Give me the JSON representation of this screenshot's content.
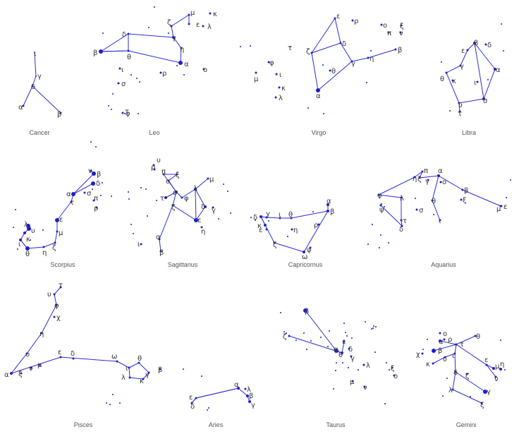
{
  "colors": {
    "line": "#2b2bd6",
    "star": "#1e1ecc",
    "label": "#333333",
    "name": "#555555",
    "background": "#ffffff"
  },
  "constellations": [
    {
      "id": "cancer",
      "name": "Cancer",
      "stars": {
        "iota": "ι",
        "gamma": "γ",
        "delta": "δ",
        "alpha": "α",
        "beta": "β"
      }
    },
    {
      "id": "leo",
      "name": "Leo",
      "stars": {
        "kappa": "κ",
        "mu": "μ",
        "zeta": "ζ",
        "epsilon": "ε",
        "lambda": "λ",
        "delta": "δ",
        "gamma": "γ",
        "beta": "β",
        "theta": "θ",
        "eta": "η",
        "alpha": "α",
        "omicron": "ο",
        "iota": "ι",
        "rho": "ρ",
        "sigma": "σ",
        "tau": "τ",
        "phi": "φ"
      }
    },
    {
      "id": "virgo",
      "name": "Virgo",
      "stars": {
        "epsilon": "ε",
        "rho": "ρ",
        "omicron": "ο",
        "xi": "ξ",
        "pi": "π",
        "nu": "ν",
        "zeta": "ζ",
        "delta": "δ",
        "beta": "β",
        "gamma": "γ",
        "eta": "η",
        "theta": "θ",
        "alpha": "α",
        "tau": "τ",
        "phi": "φ",
        "mu": "μ",
        "iota": "ι",
        "kappa": "κ",
        "lambda": "λ"
      }
    },
    {
      "id": "libra",
      "name": "Libra",
      "stars": {
        "beta": "β",
        "delta": "δ",
        "epsilon": "ε",
        "gamma": "γ",
        "alpha": "α",
        "theta": "θ",
        "kappa": "κ",
        "iota": "ι",
        "sigma": "σ",
        "upsilon": "υ",
        "tau": "τ"
      }
    },
    {
      "id": "scorpius",
      "name": "Scorpius",
      "stars": {
        "nu": "ν",
        "beta": "β",
        "delta": "δ",
        "alpha": "α",
        "sigma": "σ",
        "pi": "π",
        "tau": "τ",
        "rho": "ρ",
        "epsilon": "ε",
        "mu": "μ",
        "lambda": "λ",
        "upsilon": "υ",
        "kappa": "κ",
        "iota": "ι",
        "theta": "θ",
        "eta": "η",
        "zeta": "ζ"
      }
    },
    {
      "id": "sagittarius",
      "name": "Sagittarius",
      "stars": {
        "rho": "ρ",
        "upsilon": "υ",
        "pi": "π",
        "xi": "ξ",
        "omicron": "ο",
        "lambda": "λ",
        "mu": "μ",
        "tau": "τ",
        "sigma": "σ",
        "zeta": "ζ",
        "phi": "φ",
        "delta": "δ",
        "gamma": "γ",
        "epsilon": "ε",
        "eta": "η",
        "alpha": "α",
        "iota": "ι",
        "beta": "β"
      }
    },
    {
      "id": "capricornus",
      "name": "Capricornus",
      "stars": {
        "alpha": "α",
        "beta": "β",
        "delta": "δ",
        "gamma": "γ",
        "iota": "ι",
        "theta": "θ",
        "kappa": "κ",
        "epsilon": "ε",
        "eta": "η",
        "rho": "ρ",
        "zeta": "ζ",
        "psi": "ψ",
        "omega": "ω"
      }
    },
    {
      "id": "aquarius",
      "name": "Aquarius",
      "stars": {
        "pi": "π",
        "alpha": "α",
        "eta": "η",
        "zeta": "ζ",
        "gamma": "γ",
        "omicron": "ο",
        "phi": "φ",
        "lambda": "λ",
        "psi": "ψ",
        "sigma": "σ",
        "theta": "θ",
        "beta": "β",
        "xi": "ξ",
        "mu": "μ",
        "epsilon": "ε",
        "tau": "τ",
        "delta": "δ",
        "iota": "ι"
      }
    },
    {
      "id": "pisces",
      "name": "Pisces",
      "stars": {
        "tau": "τ",
        "upsilon": "υ",
        "phi": "φ",
        "chi": "χ",
        "eta": "η",
        "omicron": "ο",
        "alpha": "α",
        "xi": "ξ",
        "nu": "ν",
        "mu": "μ",
        "epsilon": "ε",
        "delta": "δ",
        "omega": "ω",
        "iota": "ι",
        "theta": "θ",
        "gamma": "γ",
        "lambda": "λ",
        "kappa": "κ",
        "beta": "β"
      }
    },
    {
      "id": "aries",
      "name": "Aries",
      "stars": {
        "alpha": "α",
        "lambda": "λ",
        "beta": "β",
        "gamma": "γ",
        "epsilon": "ε",
        "delta": "δ"
      }
    },
    {
      "id": "taurus",
      "name": "Taurus",
      "stars": {
        "beta": "β",
        "zeta": "ζ",
        "epsilon": "ε",
        "alpha": "α",
        "theta": "θ",
        "delta": "δ",
        "gamma": "γ",
        "lambda": "λ",
        "mu": "μ",
        "nu": "ν",
        "xi": "ξ",
        "omicron": "ο"
      }
    },
    {
      "id": "gemini",
      "name": "Gemini",
      "stars": {
        "omicron": "ο",
        "alpha": "α",
        "rho": "ρ",
        "theta": "θ",
        "chi": "χ",
        "beta": "β",
        "tau": "τ",
        "kappa": "κ",
        "upsilon": "υ",
        "iota": "ι",
        "epsilon": "ε",
        "mu": "μ",
        "eta": "η",
        "nu": "ν",
        "delta": "δ",
        "zeta": "ζ",
        "lambda": "λ",
        "gamma": "γ",
        "xi": "ξ"
      }
    }
  ]
}
